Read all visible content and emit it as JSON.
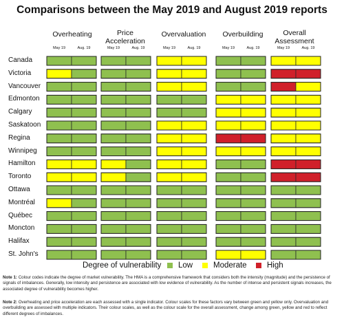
{
  "chart_data": {
    "type": "heatmap",
    "title": "Comparisons between the May 2019 and August 2019 reports",
    "columns": [
      "Overheating",
      "Price Acceleration",
      "Overvaluation",
      "Overbuilding",
      "Overall Assessment"
    ],
    "sub_columns": [
      "May 19",
      "Aug. 19"
    ],
    "rows": [
      "Canada",
      "Victoria",
      "Vancouver",
      "Edmonton",
      "Calgary",
      "Saskatoon",
      "Regina",
      "Winnipeg",
      "Hamilton",
      "Toronto",
      "Ottawa",
      "Montréal",
      "Québec",
      "Moncton",
      "Halifax",
      "St. John's"
    ],
    "values": [
      [
        "Low",
        "Low",
        "Low",
        "Low",
        "Moderate",
        "Moderate",
        "Low",
        "Low",
        "Moderate",
        "Moderate"
      ],
      [
        "Moderate",
        "Low",
        "Low",
        "Low",
        "Moderate",
        "Moderate",
        "Low",
        "Low",
        "High",
        "High"
      ],
      [
        "Low",
        "Low",
        "Low",
        "Low",
        "Moderate",
        "Moderate",
        "Low",
        "Low",
        "High",
        "Moderate"
      ],
      [
        "Low",
        "Low",
        "Low",
        "Low",
        "Low",
        "Low",
        "Moderate",
        "Moderate",
        "Moderate",
        "Moderate"
      ],
      [
        "Low",
        "Low",
        "Low",
        "Low",
        "Low",
        "Low",
        "Moderate",
        "Moderate",
        "Moderate",
        "Moderate"
      ],
      [
        "Low",
        "Low",
        "Low",
        "Low",
        "Moderate",
        "Moderate",
        "Moderate",
        "Moderate",
        "Moderate",
        "Moderate"
      ],
      [
        "Low",
        "Low",
        "Low",
        "Low",
        "Moderate",
        "Moderate",
        "High",
        "High",
        "Moderate",
        "Moderate"
      ],
      [
        "Low",
        "Low",
        "Low",
        "Low",
        "Moderate",
        "Moderate",
        "Moderate",
        "Moderate",
        "Moderate",
        "Moderate"
      ],
      [
        "Moderate",
        "Moderate",
        "Moderate",
        "Low",
        "Moderate",
        "Moderate",
        "Low",
        "Low",
        "High",
        "High"
      ],
      [
        "Moderate",
        "Moderate",
        "Moderate",
        "Low",
        "Moderate",
        "Moderate",
        "Low",
        "Low",
        "High",
        "High"
      ],
      [
        "Low",
        "Low",
        "Low",
        "Low",
        "Low",
        "Low",
        "Low",
        "Low",
        "Low",
        "Low"
      ],
      [
        "Moderate",
        "Low",
        "Low",
        "Low",
        "Low",
        "Low",
        "Low",
        "Low",
        "Low",
        "Low"
      ],
      [
        "Low",
        "Low",
        "Low",
        "Low",
        "Low",
        "Low",
        "Low",
        "Low",
        "Low",
        "Low"
      ],
      [
        "Low",
        "Low",
        "Low",
        "Low",
        "Low",
        "Low",
        "Low",
        "Low",
        "Low",
        "Low"
      ],
      [
        "Low",
        "Low",
        "Low",
        "Low",
        "Low",
        "Low",
        "Low",
        "Low",
        "Low",
        "Low"
      ],
      [
        "Low",
        "Low",
        "Low",
        "Low",
        "Low",
        "Low",
        "Moderate",
        "Moderate",
        "Low",
        "Low"
      ]
    ],
    "legend": {
      "title": "Degree of vulnerability",
      "items": [
        {
          "label": "Low",
          "color": "#8fc04f"
        },
        {
          "label": "Moderate",
          "color": "#ffff00"
        },
        {
          "label": "High",
          "color": "#d0202a"
        }
      ]
    }
  },
  "notes": [
    {
      "label": "Note 1:",
      "text": " Colour codes indicate the degree of market vulnerability. The HMA is a comprehensive framework that considers both the intensity (magnitude) and the persistence of signals of imbalances. Generally, low intensity and persistence are associated with low evidence of vulnerability. As the number of intense and persistent signals increases, the associated degree of vulnerability becomes higher."
    },
    {
      "label": "Note 2:",
      "text": " Overheating and price acceleration are each assessed with a single indicator. Colour scales for these factors vary between green and yellow only. Overvaluation and overbuilding are assessed with multiple indicators. Their colour scales, as well as the colour scale for the overall assessment, change among green, yellow and red to reflect different degrees of imbalances."
    }
  ]
}
